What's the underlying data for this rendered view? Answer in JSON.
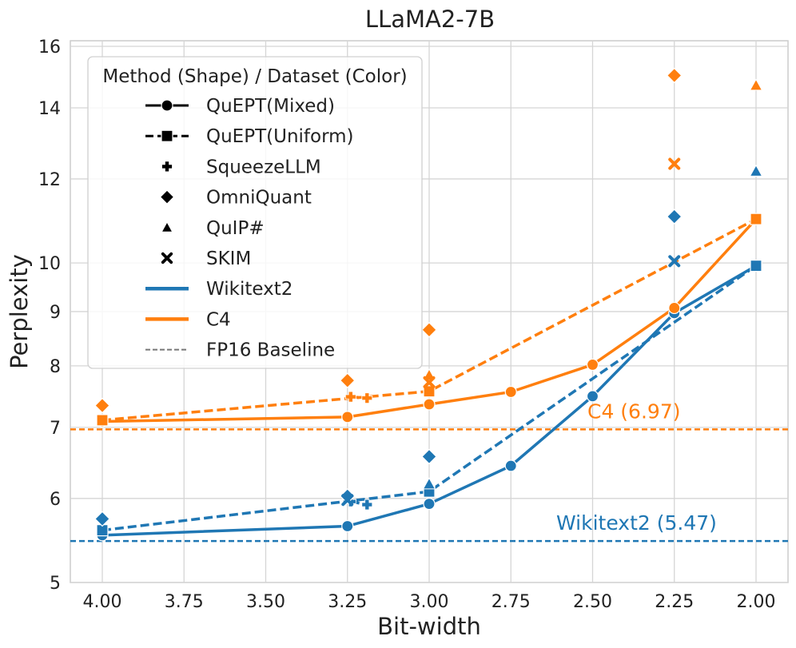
{
  "chart_data": {
    "type": "line",
    "title": "LLaMA2-7B",
    "xlabel": "Bit-width",
    "ylabel": "Perplexity",
    "x_reversed": true,
    "xlim": [
      4.0,
      2.0
    ],
    "ylim": [
      5,
      16
    ],
    "yscale": "log",
    "x_ticks": [
      4.0,
      3.75,
      3.5,
      3.25,
      3.0,
      2.75,
      2.5,
      2.25,
      2.0
    ],
    "x_tick_labels": [
      "4.00",
      "3.75",
      "3.50",
      "3.25",
      "3.00",
      "2.75",
      "2.50",
      "2.25",
      "2.00"
    ],
    "y_ticks": [
      5,
      6,
      7,
      8,
      9,
      10,
      12,
      14,
      16
    ],
    "y_tick_labels": [
      "5",
      "6",
      "7",
      "8",
      "9",
      "10",
      "12",
      "14",
      "16"
    ],
    "grid": true,
    "colors": {
      "Wikitext2": "#1f77b4",
      "C4": "#ff7f0e",
      "baseline": "#777777"
    },
    "legend": {
      "title": "Method (Shape) / Dataset (Color)",
      "placement": "top-left",
      "entries": [
        {
          "label": "QuEPT(Mixed)",
          "style": "solid-circle"
        },
        {
          "label": "QuEPT(Uniform)",
          "style": "dashed-square"
        },
        {
          "label": "SqueezeLLM",
          "style": "plus"
        },
        {
          "label": "OmniQuant",
          "style": "diamond"
        },
        {
          "label": "QuIP#",
          "style": "triangle"
        },
        {
          "label": "SKIM",
          "style": "x"
        },
        {
          "label": "Wikitext2",
          "style": "line-blue"
        },
        {
          "label": "C4",
          "style": "line-orange"
        },
        {
          "label": "FP16 Baseline",
          "style": "dashed-gray"
        }
      ]
    },
    "series": [
      {
        "method": "QuEPT(Mixed)",
        "dataset": "Wikitext2",
        "line": "solid",
        "marker": "circle",
        "x": [
          4.0,
          3.25,
          3.0,
          2.75,
          2.5,
          2.25,
          2.0
        ],
        "y": [
          5.54,
          5.65,
          5.93,
          6.44,
          7.49,
          8.97,
          9.94
        ]
      },
      {
        "method": "QuEPT(Mixed)",
        "dataset": "C4",
        "line": "solid",
        "marker": "circle",
        "x": [
          4.0,
          3.25,
          3.0,
          2.75,
          2.5,
          2.25,
          2.0
        ],
        "y": [
          7.09,
          7.16,
          7.36,
          7.56,
          8.02,
          9.07,
          11.0
        ]
      },
      {
        "method": "QuEPT(Uniform)",
        "dataset": "Wikitext2",
        "line": "dashed",
        "marker": "square",
        "x": [
          4.0,
          3.0,
          2.0
        ],
        "y": [
          5.6,
          6.09,
          9.94
        ]
      },
      {
        "method": "QuEPT(Uniform)",
        "dataset": "C4",
        "line": "dashed",
        "marker": "square",
        "x": [
          4.0,
          3.0,
          2.0
        ],
        "y": [
          7.11,
          7.57,
          11.0
        ]
      },
      {
        "method": "SqueezeLLM",
        "dataset": "Wikitext2",
        "line": "dashed",
        "marker": "plus",
        "x": [
          3.24,
          3.19
        ],
        "y": [
          5.96,
          5.92
        ]
      },
      {
        "method": "SqueezeLLM",
        "dataset": "C4",
        "line": "dashed",
        "marker": "plus",
        "x": [
          3.24,
          3.19
        ],
        "y": [
          7.48,
          7.46
        ]
      },
      {
        "method": "OmniQuant",
        "dataset": "Wikitext2",
        "line": "none",
        "marker": "diamond",
        "x": [
          4.0,
          3.25,
          3.0,
          2.25
        ],
        "y": [
          5.74,
          6.03,
          6.57,
          11.06
        ]
      },
      {
        "method": "OmniQuant",
        "dataset": "C4",
        "line": "none",
        "marker": "diamond",
        "x": [
          4.0,
          3.25,
          3.0,
          2.25
        ],
        "y": [
          7.34,
          7.75,
          8.65,
          15.02
        ]
      },
      {
        "method": "QuIP#",
        "dataset": "Wikitext2",
        "line": "none",
        "marker": "triangle",
        "x": [
          3.0,
          2.0
        ],
        "y": [
          6.19,
          12.2
        ]
      },
      {
        "method": "QuIP#",
        "dataset": "C4",
        "line": "none",
        "marker": "triangle",
        "x": [
          3.0,
          2.0
        ],
        "y": [
          7.84,
          14.7
        ]
      },
      {
        "method": "SKIM",
        "dataset": "Wikitext2",
        "line": "none",
        "marker": "x",
        "x": [
          3.25,
          2.25
        ],
        "y": [
          5.98,
          10.04
        ]
      },
      {
        "method": "SKIM",
        "dataset": "C4",
        "line": "none",
        "marker": "x",
        "x": [
          3.0,
          2.25
        ],
        "y": [
          7.72,
          12.4
        ]
      }
    ],
    "baselines": [
      {
        "dataset": "Wikitext2",
        "value": 5.47,
        "label": "Wikitext2 (5.47)"
      },
      {
        "dataset": "C4",
        "value": 6.97,
        "label": "C4 (6.97)"
      }
    ]
  }
}
